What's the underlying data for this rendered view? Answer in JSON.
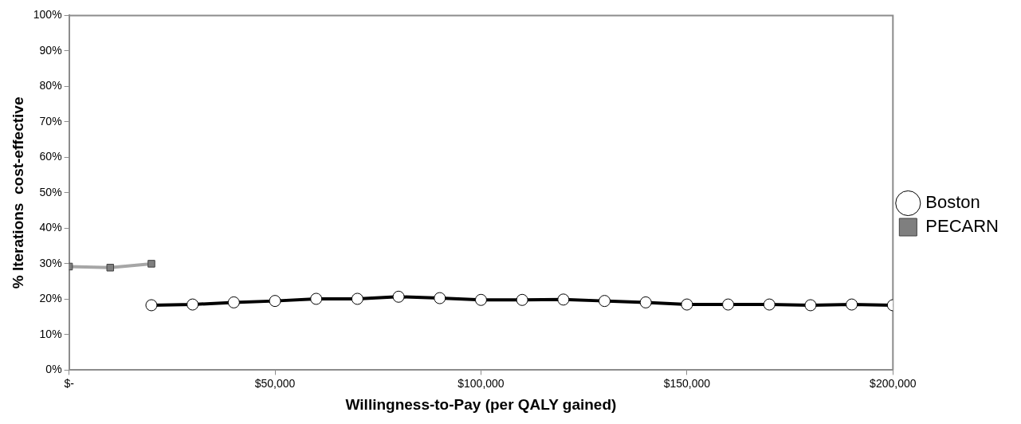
{
  "chart_data": {
    "type": "line",
    "xlabel": "Willingness-to-Pay (per QALY gained)",
    "ylabel": "% Iterations  cost-effective",
    "xlim": [
      0,
      200000
    ],
    "xticks": [
      {
        "value": 0,
        "label": "$-"
      },
      {
        "value": 50000,
        "label": "$50,000"
      },
      {
        "value": 100000,
        "label": "$100,000"
      },
      {
        "value": 150000,
        "label": "$150,000"
      },
      {
        "value": 200000,
        "label": "$200,000"
      }
    ],
    "ylim": [
      0,
      100
    ],
    "yticks": [
      {
        "value": 0,
        "label": "0%"
      },
      {
        "value": 10,
        "label": "10%"
      },
      {
        "value": 20,
        "label": "20%"
      },
      {
        "value": 30,
        "label": "30%"
      },
      {
        "value": 40,
        "label": "40%"
      },
      {
        "value": 50,
        "label": "50%"
      },
      {
        "value": 60,
        "label": "60%"
      },
      {
        "value": 70,
        "label": "70%"
      },
      {
        "value": 80,
        "label": "80%"
      },
      {
        "value": 90,
        "label": "90%"
      },
      {
        "value": 100,
        "label": "100%"
      }
    ],
    "grid": false,
    "legend": "right",
    "series": [
      {
        "name": "Boston",
        "color": "#000000",
        "marker": "circle",
        "x": [
          20000,
          30000,
          40000,
          50000,
          60000,
          70000,
          80000,
          90000,
          100000,
          110000,
          120000,
          130000,
          140000,
          150000,
          160000,
          170000,
          180000,
          190000,
          200000
        ],
        "values": [
          18.3,
          18.5,
          19.1,
          19.5,
          20.1,
          20.1,
          20.7,
          20.3,
          19.8,
          19.8,
          19.9,
          19.5,
          19.1,
          18.5,
          18.5,
          18.5,
          18.3,
          18.5,
          18.3
        ]
      },
      {
        "name": "PECARN",
        "color": "#a6a6a6",
        "marker": "square",
        "x": [
          0,
          10000,
          20000
        ],
        "values": [
          29.2,
          28.9,
          30.0
        ]
      }
    ]
  }
}
